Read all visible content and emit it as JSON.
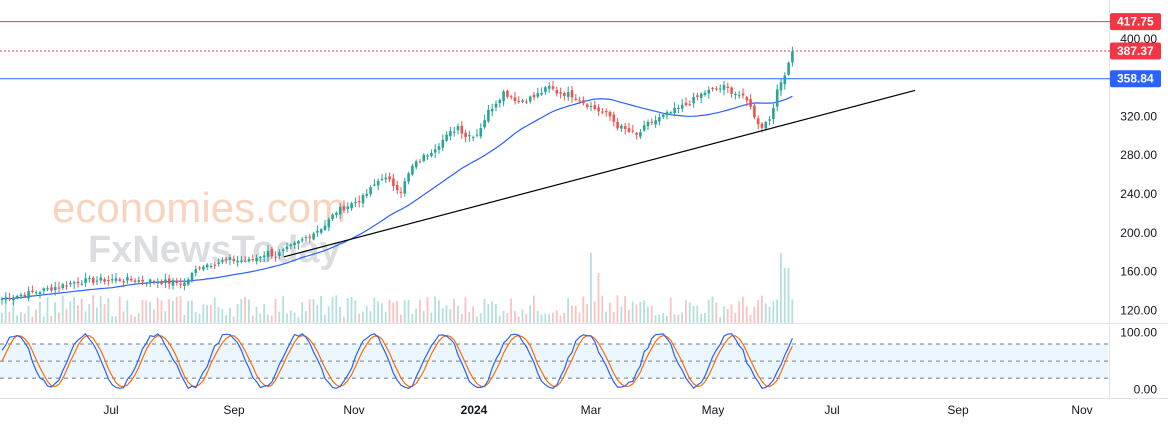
{
  "watermark": {
    "line1": "economies.com",
    "line2": "FxNewsToday"
  },
  "colors": {
    "up": "#26a69a",
    "down": "#ef5350",
    "ma": "#2962ff",
    "trend": "#000000",
    "resistance": "#f23645",
    "current": "#f23645",
    "support": "#2962ff",
    "stoch_k": "#2962ff",
    "stoch_d": "#ff6d00",
    "stoch_band": "#e3f2fd"
  },
  "chart_data": [
    {
      "type": "candlestick",
      "title": "",
      "x_tick_labels": [
        "Jul",
        "Sep",
        "Nov",
        "2024",
        "Mar",
        "May",
        "Jul",
        "Sep",
        "Nov"
      ],
      "y_tick_labels": [
        "120.00",
        "160.00",
        "200.00",
        "240.00",
        "280.00",
        "320.00",
        "400.00"
      ],
      "ylim": [
        107,
        440
      ],
      "price_levels": [
        {
          "name": "resistance",
          "value": 417.75,
          "label": "417.75"
        },
        {
          "name": "current",
          "value": 387.37,
          "label": "387.37"
        },
        {
          "name": "support",
          "value": 358.84,
          "label": "358.84"
        }
      ],
      "trendline": {
        "start": {
          "bar": 72,
          "price": 172
        },
        "end": {
          "bar": 190,
          "price": 354
        }
      },
      "close_waypoints": [
        [
          0,
          132
        ],
        [
          10,
          140
        ],
        [
          20,
          150
        ],
        [
          30,
          152
        ],
        [
          40,
          150
        ],
        [
          48,
          148
        ],
        [
          52,
          166
        ],
        [
          60,
          172
        ],
        [
          65,
          171
        ],
        [
          70,
          180
        ],
        [
          72,
          176
        ],
        [
          78,
          190
        ],
        [
          85,
          208
        ],
        [
          88,
          222
        ],
        [
          95,
          236
        ],
        [
          100,
          258
        ],
        [
          105,
          244
        ],
        [
          108,
          268
        ],
        [
          115,
          292
        ],
        [
          120,
          310
        ],
        [
          122,
          300
        ],
        [
          125,
          302
        ],
        [
          128,
          325
        ],
        [
          132,
          345
        ],
        [
          136,
          336
        ],
        [
          140,
          340
        ],
        [
          144,
          350
        ],
        [
          146,
          345
        ],
        [
          150,
          342
        ],
        [
          155,
          330
        ],
        [
          160,
          320
        ],
        [
          162,
          310
        ],
        [
          167,
          300
        ],
        [
          170,
          312
        ],
        [
          175,
          322
        ],
        [
          180,
          332
        ],
        [
          185,
          345
        ],
        [
          190,
          350
        ],
        [
          194,
          342
        ],
        [
          197,
          332
        ],
        [
          198,
          318
        ],
        [
          200,
          310
        ],
        [
          202,
          318
        ],
        [
          204,
          345
        ],
        [
          206,
          365
        ],
        [
          208,
          387
        ]
      ],
      "volume_note": "volume histogram under price",
      "stochastic": {
        "y_tick_labels": [
          "100.00",
          "0.00"
        ],
        "upper_band": 80,
        "lower_band": 20,
        "mid": 50,
        "ylim": [
          -15,
          110
        ]
      }
    }
  ]
}
